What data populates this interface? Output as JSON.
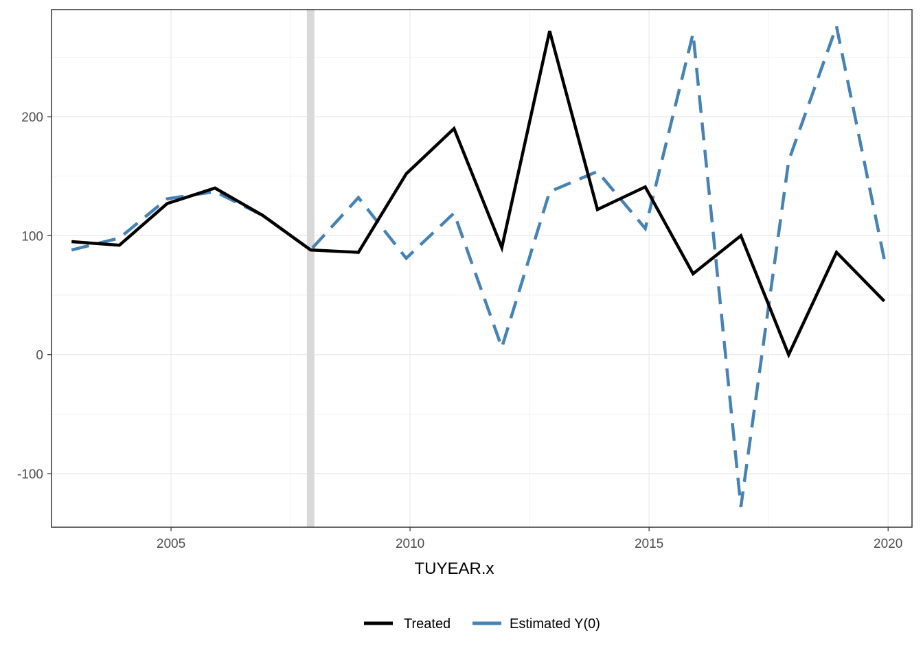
{
  "chart_data": {
    "type": "line",
    "title": "",
    "xlabel": "TUYEAR.x",
    "ylabel": "",
    "xlim": [
      2002.5,
      2020.5
    ],
    "ylim": [
      -145,
      290
    ],
    "x_ticks": [
      2005,
      2010,
      2015,
      2020
    ],
    "x_tick_labels": [
      "2005",
      "2010",
      "2015",
      "2020"
    ],
    "y_ticks": [
      -100,
      0,
      100,
      200
    ],
    "y_tick_labels": [
      "-100",
      "0",
      "100",
      "200"
    ],
    "grid": true,
    "legend_position": "bottom",
    "treatment_line": {
      "x": 2008,
      "color": "#d9d9d9"
    },
    "x": [
      2003,
      2004,
      2005,
      2006,
      2007,
      2008,
      2009,
      2010,
      2011,
      2012,
      2013,
      2014,
      2015,
      2016,
      2017,
      2018,
      2019,
      2020
    ],
    "series": [
      {
        "name": "Treated",
        "color": "#000000",
        "style": "solid",
        "values": [
          95,
          92,
          127,
          140,
          117,
          88,
          86,
          152,
          190,
          90,
          272,
          122,
          141,
          68,
          100,
          0,
          86,
          45
        ]
      },
      {
        "name": "Estimated Y(0)",
        "color": "#4682B4",
        "style": "dashed",
        "values": [
          88,
          98,
          131,
          137,
          117,
          88,
          132,
          81,
          119,
          6,
          137,
          154,
          106,
          270,
          -128,
          163,
          276,
          80
        ]
      }
    ]
  }
}
